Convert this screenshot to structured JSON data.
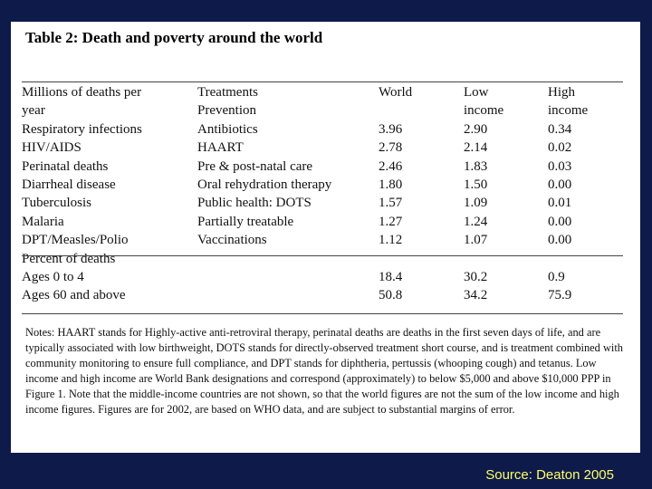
{
  "title": "Table 2: Death and poverty around the world",
  "header": {
    "col1_line1": "Millions of deaths per",
    "col1_line2": "year",
    "col2_line1": "Treatments",
    "col2_line2": "Prevention",
    "col3_line1": "World",
    "col3_line2": "",
    "col4_line1": "Low",
    "col4_line2": "income",
    "col5_line1": "High",
    "col5_line2": "income"
  },
  "rows": [
    {
      "cause": "Respiratory infections",
      "treatment": "Antibiotics",
      "world": "3.96",
      "low": "2.90",
      "high": "0.34"
    },
    {
      "cause": "HIV/AIDS",
      "treatment": "HAART",
      "world": "2.78",
      "low": "2.14",
      "high": "0.02"
    },
    {
      "cause": "Perinatal deaths",
      "treatment": "Pre & post-natal care",
      "world": "2.46",
      "low": "1.83",
      "high": "0.03"
    },
    {
      "cause": "Diarrheal disease",
      "treatment": "Oral rehydration therapy",
      "world": "1.80",
      "low": "1.50",
      "high": "0.00"
    },
    {
      "cause": "Tuberculosis",
      "treatment": "Public health: DOTS",
      "world": "1.57",
      "low": "1.09",
      "high": "0.01"
    },
    {
      "cause": "Malaria",
      "treatment": "Partially treatable",
      "world": "1.27",
      "low": "1.24",
      "high": "0.00"
    },
    {
      "cause": "DPT/Measles/Polio",
      "treatment": "Vaccinations",
      "world": "1.12",
      "low": "1.07",
      "high": "0.00"
    }
  ],
  "percent_section": {
    "label": "Percent of deaths",
    "rows": [
      {
        "label": "Ages 0 to 4",
        "world": "18.4",
        "low": "30.2",
        "high": "0.9"
      },
      {
        "label": "Ages 60 and above",
        "world": "50.8",
        "low": "34.2",
        "high": "75.9"
      }
    ]
  },
  "notes": "Notes: HAART stands for Highly-active anti-retroviral therapy, perinatal deaths are deaths in the first seven days of life, and are typically associated with low birthweight, DOTS stands for directly-observed treatment short course, and is treatment combined with community monitoring to ensure full compliance, and DPT stands for diphtheria, pertussis (whooping cough) and tetanus. Low income and high income are World Bank designations and correspond (approximately) to below $5,000 and above $10,000 PPP in Figure 1. Note that the middle-income countries are not shown, so that the world figures are not the sum of the low income and high income figures. Figures are for 2002, are based on WHO data, and are subject to substantial margins of error.",
  "source": "Source: Deaton 2005"
}
